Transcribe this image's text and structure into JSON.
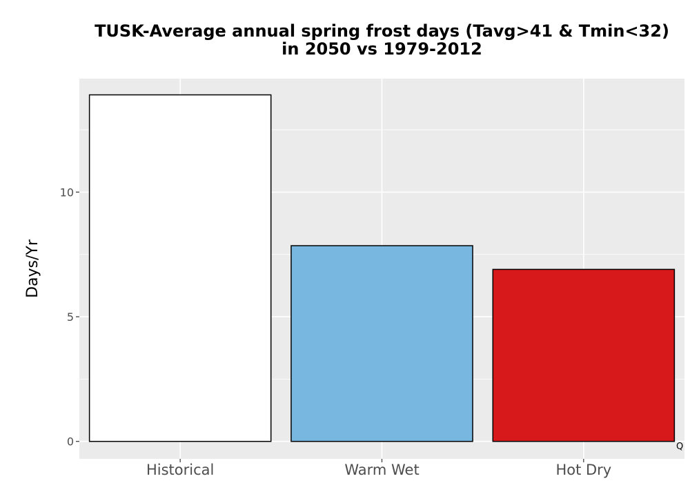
{
  "chart_data": {
    "type": "bar",
    "title_line1": "TUSK-Average annual spring frost days (Tavg>41 & Tmin<32)",
    "title_line2": "in 2050 vs 1979-2012",
    "xlabel": "",
    "ylabel": "Days/Yr",
    "categories": [
      "Historical",
      "Warm Wet",
      "Hot Dry"
    ],
    "values": [
      13.9,
      7.85,
      6.9
    ],
    "colors": [
      "#ffffff",
      "#78b7e0",
      "#d7191c"
    ],
    "ylim": [
      -0.7,
      14.55
    ],
    "yticks": [
      0,
      5,
      10
    ],
    "ytick_labels": [
      "0",
      "5",
      "10"
    ],
    "grid": true,
    "legend": "none",
    "panel_color": "#ebebeb"
  },
  "corner_note": "Q"
}
